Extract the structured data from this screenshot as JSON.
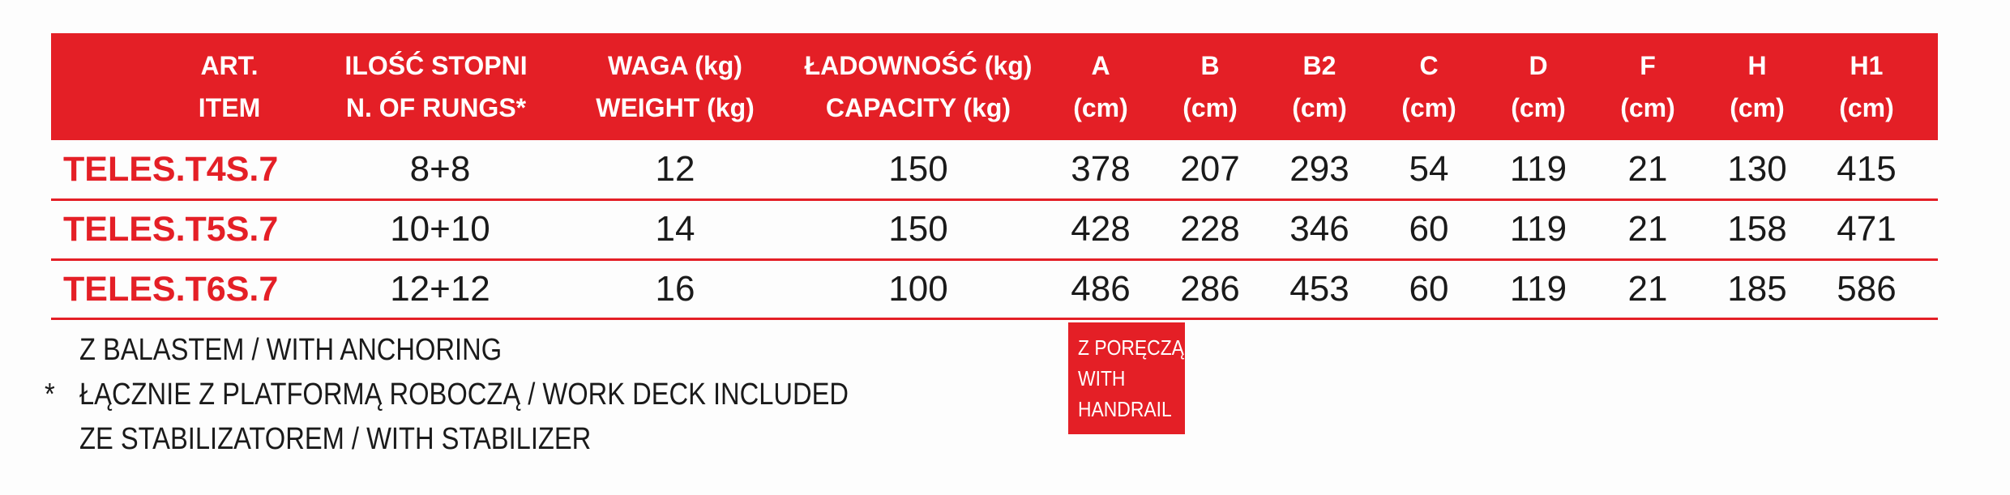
{
  "table": {
    "headers": [
      {
        "line1": "ART.",
        "line2": "ITEM"
      },
      {
        "line1": "ILOŚĆ STOPNI",
        "line2": "N. OF RUNGS*"
      },
      {
        "line1": "WAGA (kg)",
        "line2": "WEIGHT  (kg)"
      },
      {
        "line1": "ŁADOWNOŚĆ (kg)",
        "line2": "CAPACITY (kg)"
      },
      {
        "line1": "A",
        "line2": "(cm)"
      },
      {
        "line1": "B",
        "line2": "(cm)"
      },
      {
        "line1": "B2",
        "line2": "(cm)"
      },
      {
        "line1": "C",
        "line2": "(cm)"
      },
      {
        "line1": "D",
        "line2": "(cm)"
      },
      {
        "line1": "F",
        "line2": "(cm)"
      },
      {
        "line1": "H",
        "line2": "(cm)"
      },
      {
        "line1": "H1",
        "line2": "(cm)"
      }
    ],
    "rows": [
      [
        "TELES.T4S.7",
        "8+8",
        "12",
        "150",
        "378",
        "207",
        "293",
        "54",
        "119",
        "21",
        "130",
        "415"
      ],
      [
        "TELES.T5S.7",
        "10+10",
        "14",
        "150",
        "428",
        "228",
        "346",
        "60",
        "119",
        "21",
        "158",
        "471"
      ],
      [
        "TELES.T6S.7",
        "12+12",
        "16",
        "100",
        "486",
        "286",
        "453",
        "60",
        "119",
        "21",
        "185",
        "586"
      ]
    ]
  },
  "notes": [
    {
      "mark": "",
      "text": "Z BALASTEM / WITH ANCHORING"
    },
    {
      "mark": "*",
      "text": "ŁĄCZNIE Z PLATFORMĄ ROBOCZĄ / WORK DECK INCLUDED"
    },
    {
      "mark": "",
      "text": "ZE STABILIZATOREM / WITH STABILIZER"
    }
  ],
  "handrail_badge": {
    "line1": "Z PORĘCZĄ",
    "line2": "WITH",
    "line3": "HANDRAIL"
  },
  "colors": {
    "accent": "#e41f26",
    "text": "#1a1a1a",
    "background": "#fdfdfd"
  }
}
